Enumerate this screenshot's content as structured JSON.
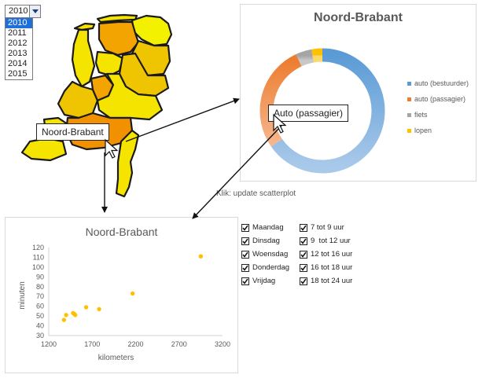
{
  "year_select": {
    "value": "2010",
    "options": [
      "2010",
      "2011",
      "2012",
      "2013",
      "2014",
      "2015"
    ],
    "selected": "2010"
  },
  "map": {
    "hover_label": "Noord-Brabant",
    "colors": {
      "outline": "#1a1a1a",
      "yellow": "#f5e400",
      "gold": "#eec500",
      "orange": "#f3a400",
      "deep_orange": "#f29100",
      "light_yellow": "#f4f100"
    }
  },
  "donut": {
    "title": "Noord-Brabant",
    "hover_label": "Auto (passagier)",
    "legend": [
      {
        "label": "auto (bestuurder)",
        "color": "#5b9bd5"
      },
      {
        "label": "auto (passagier)",
        "color": "#ed7d31"
      },
      {
        "label": "fiets",
        "color": "#a5a5a5"
      },
      {
        "label": "lopen",
        "color": "#ffc000"
      }
    ]
  },
  "click_note": "Klik: update scatterplot",
  "scatter": {
    "chart_data": {
      "type": "scatter",
      "title": "Noord-Brabant",
      "xlabel": "kilometers",
      "ylabel": "minuten",
      "xlim": [
        1200,
        3200
      ],
      "ylim": [
        30,
        120
      ],
      "xticks": [
        "1200",
        "1700",
        "2200",
        "2700",
        "3200"
      ],
      "yticks": [
        "30",
        "40",
        "50",
        "60",
        "70",
        "80",
        "90",
        "100",
        "110",
        "120"
      ],
      "points": [
        {
          "x": 1375,
          "y": 46
        },
        {
          "x": 1400,
          "y": 51
        },
        {
          "x": 1480,
          "y": 53
        },
        {
          "x": 1495,
          "y": 52
        },
        {
          "x": 1505,
          "y": 51
        },
        {
          "x": 1630,
          "y": 59
        },
        {
          "x": 1780,
          "y": 57
        },
        {
          "x": 2165,
          "y": 73
        },
        {
          "x": 2950,
          "y": 111
        }
      ],
      "point_color": "#ffc000"
    }
  },
  "days": [
    "Maandag",
    "Dinsdag",
    "Woensdag",
    "Donderdag",
    "Vrijdag"
  ],
  "times": [
    "7 tot 9 uur",
    "9  tot 12 uur",
    "12 tot 16 uur",
    "16 tot 18 uur",
    "18 tot 24 uur"
  ]
}
